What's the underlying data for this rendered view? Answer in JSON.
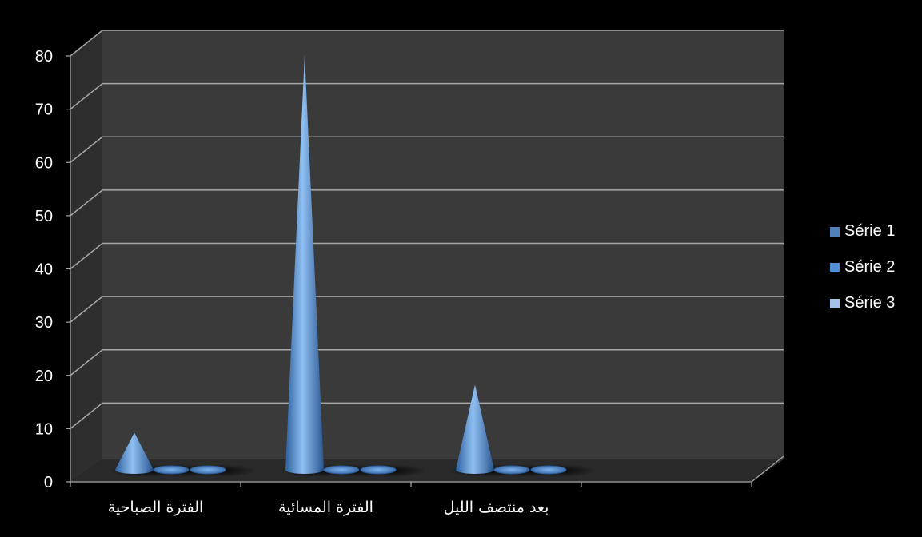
{
  "chart_data": {
    "type": "bar",
    "style": "3d-cone",
    "categories": [
      "الفترة الصباحية",
      "الفترة المسائية",
      "بعد منتصف الليل"
    ],
    "series": [
      {
        "name": "Série 1",
        "values": [
          7,
          78,
          16
        ],
        "color": "#4f81bd"
      },
      {
        "name": "Série 2",
        "values": [
          0,
          0,
          0
        ],
        "color": "#4f8fd6"
      },
      {
        "name": "Série 3",
        "values": [
          0,
          0,
          0
        ],
        "color": "#a4c1ea"
      }
    ],
    "ylim": [
      0,
      80
    ],
    "yticks": [
      "0",
      "10",
      "20",
      "30",
      "40",
      "50",
      "60",
      "70",
      "80"
    ],
    "grid": true,
    "legend_position": "right",
    "background": "#000000",
    "wall_color": "#3a3a3a",
    "floor_color": "#2a2a2a"
  }
}
